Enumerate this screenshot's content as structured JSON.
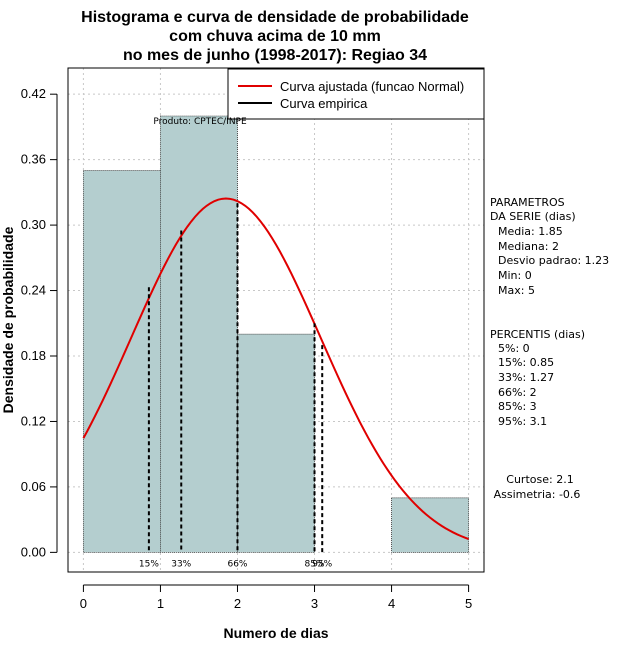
{
  "chart_data": {
    "type": "bar",
    "title_lines": [
      "Histograma e curva de densidade de probabilidade",
      "com chuva acima de 10 mm",
      "no mes de junho (1998-2017): Regiao 34"
    ],
    "xlabel": "Numero de dias",
    "ylabel": "Densidade de probabilidade",
    "xlim": [
      -0.2,
      5.2
    ],
    "ylim": [
      -0.018,
      0.444
    ],
    "xticks": [
      "0",
      "1",
      "2",
      "3",
      "4",
      "5"
    ],
    "yticks": [
      "0.00",
      "0.06",
      "0.12",
      "0.18",
      "0.24",
      "0.30",
      "0.36",
      "0.42"
    ],
    "bins": [
      {
        "from": 0,
        "to": 1,
        "density": 0.35
      },
      {
        "from": 1,
        "to": 2,
        "density": 0.4
      },
      {
        "from": 2,
        "to": 3,
        "density": 0.2
      },
      {
        "from": 3,
        "to": 4,
        "density": 0.0
      },
      {
        "from": 4,
        "to": 5,
        "density": 0.05
      }
    ],
    "normal_fit": {
      "mean": 1.85,
      "sd": 1.23
    },
    "percentile_lines": [
      {
        "label": "15%",
        "x": 0.85,
        "y": 0.243
      },
      {
        "label": "33%",
        "x": 1.27,
        "y": 0.295
      },
      {
        "label": "66%",
        "x": 2.0,
        "y": 0.32
      },
      {
        "label": "85%",
        "x": 3.0,
        "y": 0.21
      },
      {
        "label": "95%",
        "x": 3.1,
        "y": 0.19
      }
    ],
    "legend": [
      {
        "label": "Curva ajustada (funcao Normal)",
        "color": "#e00000"
      },
      {
        "label": "Curva empirica",
        "color": "#000000"
      }
    ],
    "product_label": "Produto: CPTEC/INPE",
    "colors": {
      "bar_fill": "#b4cecf",
      "curve": "#e00000",
      "grid": "#c8c8c8"
    }
  },
  "side_panel": {
    "parametros_title_1": "PARAMETROS",
    "parametros_title_2": "DA SERIE (dias)",
    "media": "Media: 1.85",
    "mediana": "Mediana: 2",
    "desvio": "Desvio padrao: 1.23",
    "min": "Min: 0",
    "max": "Max: 5",
    "percentis_title": "PERCENTIS (dias)",
    "p5": "5%: 0",
    "p15": "15%: 0.85",
    "p33": "33%: 1.27",
    "p66": "66%: 2",
    "p85": "85%: 3",
    "p95": "95%: 3.1",
    "curtose": "Curtose: 2.1",
    "assimetria": "Assimetria: -0.6"
  }
}
